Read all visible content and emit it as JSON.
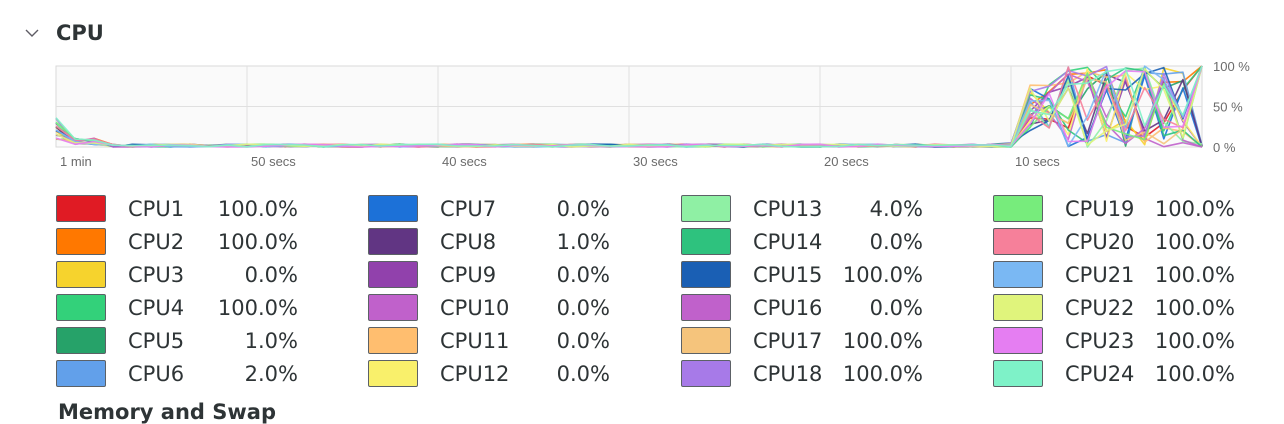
{
  "section": {
    "title": "CPU",
    "toggle_icon": "chevron-down-icon"
  },
  "next_section": {
    "title": "Memory and Swap"
  },
  "chart_data": {
    "type": "line",
    "title": "CPU",
    "x_ticks": [
      "1 min",
      "50 secs",
      "40 secs",
      "30 secs",
      "20 secs",
      "10 secs"
    ],
    "y_ticks": [
      "100 %",
      "50 %",
      "0 %"
    ],
    "ylim": [
      0,
      100
    ],
    "grid": true,
    "x_range_seconds_ago": [
      60,
      0
    ]
  },
  "cpus": [
    {
      "name": "CPU1",
      "value": "100.0%",
      "color": "#e01b24"
    },
    {
      "name": "CPU2",
      "value": "100.0%",
      "color": "#ff7800"
    },
    {
      "name": "CPU3",
      "value": "0.0%",
      "color": "#f6d32d"
    },
    {
      "name": "CPU4",
      "value": "100.0%",
      "color": "#33d17a"
    },
    {
      "name": "CPU5",
      "value": "1.0%",
      "color": "#26a269"
    },
    {
      "name": "CPU6",
      "value": "2.0%",
      "color": "#62a0ea"
    },
    {
      "name": "CPU7",
      "value": "0.0%",
      "color": "#1c71d8"
    },
    {
      "name": "CPU8",
      "value": "1.0%",
      "color": "#613583"
    },
    {
      "name": "CPU9",
      "value": "0.0%",
      "color": "#9141ac"
    },
    {
      "name": "CPU10",
      "value": "0.0%",
      "color": "#c061cb"
    },
    {
      "name": "CPU11",
      "value": "0.0%",
      "color": "#ffbe6f"
    },
    {
      "name": "CPU12",
      "value": "0.0%",
      "color": "#f9f06b"
    },
    {
      "name": "CPU13",
      "value": "4.0%",
      "color": "#8ff0a4"
    },
    {
      "name": "CPU14",
      "value": "0.0%",
      "color": "#2ec27e"
    },
    {
      "name": "CPU15",
      "value": "100.0%",
      "color": "#1a5fb4"
    },
    {
      "name": "CPU16",
      "value": "0.0%",
      "color": "#c061cb"
    },
    {
      "name": "CPU17",
      "value": "100.0%",
      "color": "#f5c47c"
    },
    {
      "name": "CPU18",
      "value": "100.0%",
      "color": "#a77ae8"
    },
    {
      "name": "CPU19",
      "value": "100.0%",
      "color": "#77ec7c"
    },
    {
      "name": "CPU20",
      "value": "100.0%",
      "color": "#f6809a"
    },
    {
      "name": "CPU21",
      "value": "100.0%",
      "color": "#7ab8f3"
    },
    {
      "name": "CPU22",
      "value": "100.0%",
      "color": "#e0f47c"
    },
    {
      "name": "CPU23",
      "value": "100.0%",
      "color": "#e57ef2"
    },
    {
      "name": "CPU24",
      "value": "100.0%",
      "color": "#7ef2c8"
    }
  ]
}
